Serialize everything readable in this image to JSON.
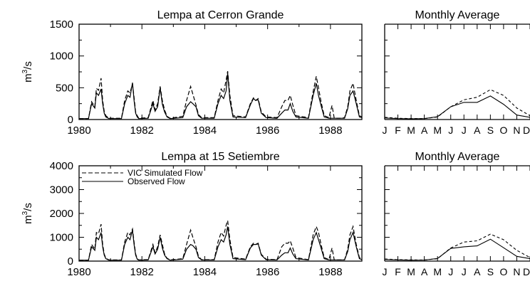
{
  "colors": {
    "background": "#ffffff",
    "ink": "#000000"
  },
  "series_styles": {
    "simulated": {
      "dash": "dashed"
    },
    "observed": {
      "dash": "solid"
    }
  },
  "y_unit_label": "m3/s",
  "chart_data": [
    {
      "id": "lempa-cerron-grande-timeseries",
      "type": "line",
      "title": "Lempa at Cerron Grande",
      "ylabel": "m3/s",
      "xlim": [
        1980,
        1989
      ],
      "ylim": [
        0,
        1500
      ],
      "xticks": [
        1980,
        1982,
        1984,
        1986,
        1988
      ],
      "yticks": [
        0,
        500,
        1000,
        1500
      ],
      "legend": null,
      "series": [
        {
          "name": "VIC Simulated Flow",
          "style": "dashed",
          "x": [
            1980,
            1980.3,
            1980.4,
            1980.5,
            1980.55,
            1980.62,
            1980.7,
            1980.75,
            1980.8,
            1980.85,
            1980.95,
            1981.35,
            1981.45,
            1981.55,
            1981.62,
            1981.7,
            1981.75,
            1981.8,
            1981.85,
            1981.9,
            1982.2,
            1982.35,
            1982.42,
            1982.5,
            1982.58,
            1982.65,
            1982.72,
            1982.8,
            1982.9,
            1983.3,
            1983.42,
            1983.55,
            1983.62,
            1983.72,
            1983.8,
            1983.9,
            1984.3,
            1984.42,
            1984.52,
            1984.6,
            1984.68,
            1984.73,
            1984.8,
            1984.9,
            1985.3,
            1985.45,
            1985.55,
            1985.62,
            1985.7,
            1985.8,
            1985.95,
            1986.3,
            1986.45,
            1986.55,
            1986.65,
            1986.72,
            1986.8,
            1986.9,
            1987.3,
            1987.45,
            1987.55,
            1987.62,
            1987.7,
            1987.8,
            1987.95,
            1988.05,
            1988.12,
            1988.2,
            1988.35,
            1988.45,
            1988.55,
            1988.62,
            1988.72,
            1988.82,
            1988.92,
            1989
          ],
          "y": [
            15,
            15,
            280,
            200,
            490,
            460,
            650,
            300,
            130,
            60,
            20,
            20,
            300,
            450,
            420,
            560,
            350,
            120,
            60,
            20,
            30,
            300,
            150,
            250,
            520,
            300,
            150,
            50,
            20,
            50,
            300,
            520,
            400,
            230,
            80,
            30,
            30,
            300,
            480,
            420,
            620,
            760,
            380,
            60,
            40,
            250,
            340,
            300,
            330,
            120,
            40,
            30,
            200,
            300,
            300,
            380,
            230,
            60,
            30,
            440,
            680,
            500,
            280,
            60,
            30,
            220,
            20,
            20,
            20,
            30,
            200,
            450,
            570,
            300,
            60,
            40
          ]
        },
        {
          "name": "Observed Flow",
          "style": "solid",
          "x": [
            1980,
            1980.3,
            1980.4,
            1980.5,
            1980.55,
            1980.62,
            1980.7,
            1980.75,
            1980.8,
            1980.85,
            1980.95,
            1981.35,
            1981.45,
            1981.55,
            1981.62,
            1981.7,
            1981.75,
            1981.8,
            1981.85,
            1981.9,
            1982.2,
            1982.35,
            1982.42,
            1982.5,
            1982.58,
            1982.65,
            1982.72,
            1982.8,
            1982.9,
            1983.3,
            1983.42,
            1983.55,
            1983.62,
            1983.72,
            1983.8,
            1983.9,
            1984.3,
            1984.42,
            1984.52,
            1984.6,
            1984.68,
            1984.73,
            1984.8,
            1984.9,
            1985.3,
            1985.45,
            1985.55,
            1985.62,
            1985.7,
            1985.8,
            1985.95,
            1986.3,
            1986.45,
            1986.55,
            1986.65,
            1986.72,
            1986.8,
            1986.9,
            1987.3,
            1987.45,
            1987.55,
            1987.62,
            1987.7,
            1987.8,
            1987.95,
            1988.05,
            1988.12,
            1988.2,
            1988.35,
            1988.45,
            1988.55,
            1988.62,
            1988.72,
            1988.82,
            1988.92,
            1989
          ],
          "y": [
            15,
            15,
            250,
            180,
            420,
            380,
            480,
            250,
            100,
            40,
            15,
            15,
            250,
            380,
            350,
            580,
            300,
            100,
            40,
            15,
            20,
            250,
            130,
            200,
            500,
            240,
            120,
            40,
            15,
            30,
            200,
            280,
            250,
            200,
            60,
            20,
            20,
            250,
            380,
            330,
            450,
            730,
            300,
            40,
            30,
            230,
            330,
            300,
            310,
            100,
            30,
            20,
            100,
            150,
            150,
            250,
            130,
            40,
            20,
            380,
            570,
            380,
            220,
            40,
            20,
            20,
            20,
            20,
            20,
            20,
            170,
            380,
            450,
            250,
            40,
            30
          ]
        }
      ]
    },
    {
      "id": "cerron-grande-monthly-average",
      "type": "line",
      "title": "Monthly Average",
      "categories": [
        "J",
        "F",
        "M",
        "A",
        "M",
        "J",
        "J",
        "A",
        "S",
        "O",
        "N",
        "D"
      ],
      "ylim": [
        0,
        1500
      ],
      "series": [
        {
          "name": "VIC Simulated Flow",
          "style": "dashed",
          "values": [
            35,
            20,
            15,
            15,
            40,
            200,
            310,
            350,
            470,
            380,
            180,
            60
          ]
        },
        {
          "name": "Observed Flow",
          "style": "solid",
          "values": [
            25,
            15,
            12,
            15,
            45,
            200,
            270,
            270,
            370,
            240,
            70,
            35
          ]
        }
      ]
    },
    {
      "id": "lempa-15-setiembre-timeseries",
      "type": "line",
      "title": "Lempa at 15 Setiembre",
      "ylabel": "m3/s",
      "xlim": [
        1980,
        1989
      ],
      "ylim": [
        0,
        4000
      ],
      "xticks": [
        1980,
        1982,
        1984,
        1986,
        1988
      ],
      "yticks": [
        0,
        1000,
        2000,
        3000,
        4000
      ],
      "legend": "top-left",
      "series": [
        {
          "name": "VIC Simulated Flow",
          "style": "dashed",
          "x": [
            1980,
            1980.3,
            1980.4,
            1980.5,
            1980.55,
            1980.62,
            1980.7,
            1980.75,
            1980.8,
            1980.85,
            1980.95,
            1981.35,
            1981.45,
            1981.55,
            1981.62,
            1981.7,
            1981.75,
            1981.8,
            1981.85,
            1981.9,
            1982.2,
            1982.35,
            1982.42,
            1982.5,
            1982.58,
            1982.65,
            1982.72,
            1982.8,
            1982.9,
            1983.3,
            1983.42,
            1983.55,
            1983.62,
            1983.72,
            1983.8,
            1983.9,
            1984.3,
            1984.42,
            1984.52,
            1984.6,
            1984.68,
            1984.73,
            1984.8,
            1984.9,
            1985.3,
            1985.45,
            1985.55,
            1985.62,
            1985.7,
            1985.8,
            1985.95,
            1986.3,
            1986.45,
            1986.55,
            1986.65,
            1986.72,
            1986.8,
            1986.9,
            1987.3,
            1987.45,
            1987.55,
            1987.62,
            1987.7,
            1987.8,
            1987.95,
            1988.05,
            1988.12,
            1988.2,
            1988.35,
            1988.45,
            1988.55,
            1988.62,
            1988.72,
            1988.82,
            1988.92,
            1989
          ],
          "y": [
            40,
            40,
            700,
            500,
            1200,
            1150,
            1550,
            700,
            300,
            120,
            50,
            50,
            800,
            1200,
            1100,
            1350,
            800,
            300,
            100,
            50,
            60,
            700,
            350,
            600,
            1100,
            700,
            300,
            120,
            50,
            100,
            700,
            1300,
            1000,
            600,
            200,
            60,
            60,
            800,
            1200,
            1050,
            1500,
            1700,
            900,
            150,
            80,
            600,
            750,
            700,
            750,
            280,
            80,
            60,
            600,
            750,
            750,
            850,
            550,
            150,
            60,
            1100,
            1450,
            1200,
            700,
            150,
            60,
            550,
            50,
            50,
            50,
            60,
            500,
            1100,
            1450,
            700,
            150,
            80
          ]
        },
        {
          "name": "Observed Flow",
          "style": "solid",
          "x": [
            1980,
            1980.3,
            1980.4,
            1980.5,
            1980.55,
            1980.62,
            1980.7,
            1980.75,
            1980.8,
            1980.85,
            1980.95,
            1981.35,
            1981.45,
            1981.55,
            1981.62,
            1981.7,
            1981.75,
            1981.8,
            1981.85,
            1981.9,
            1982.2,
            1982.35,
            1982.42,
            1982.5,
            1982.58,
            1982.65,
            1982.72,
            1982.8,
            1982.9,
            1983.3,
            1983.42,
            1983.55,
            1983.62,
            1983.72,
            1983.8,
            1983.9,
            1984.3,
            1984.42,
            1984.52,
            1984.6,
            1984.68,
            1984.73,
            1984.8,
            1984.9,
            1985.3,
            1985.45,
            1985.55,
            1985.62,
            1985.7,
            1985.8,
            1985.95,
            1986.3,
            1986.45,
            1986.55,
            1986.65,
            1986.72,
            1986.8,
            1986.9,
            1987.3,
            1987.45,
            1987.55,
            1987.62,
            1987.7,
            1987.8,
            1987.95,
            1988.05,
            1988.12,
            1988.2,
            1988.35,
            1988.45,
            1988.55,
            1988.62,
            1988.72,
            1988.82,
            1988.92,
            1989
          ],
          "y": [
            40,
            40,
            600,
            450,
            1000,
            900,
            1200,
            600,
            250,
            100,
            40,
            40,
            700,
            1000,
            900,
            1300,
            700,
            250,
            80,
            40,
            50,
            600,
            300,
            500,
            1000,
            550,
            250,
            100,
            40,
            80,
            500,
            700,
            650,
            500,
            150,
            50,
            50,
            600,
            900,
            800,
            1100,
            1450,
            700,
            100,
            60,
            550,
            700,
            700,
            720,
            250,
            60,
            50,
            250,
            350,
            350,
            550,
            300,
            100,
            50,
            900,
            1200,
            900,
            550,
            100,
            50,
            50,
            50,
            50,
            50,
            50,
            400,
            900,
            1200,
            600,
            100,
            60
          ]
        }
      ]
    },
    {
      "id": "15-setiembre-monthly-average",
      "type": "line",
      "title": "Monthly Average",
      "categories": [
        "J",
        "F",
        "M",
        "A",
        "M",
        "J",
        "J",
        "A",
        "S",
        "O",
        "N",
        "D"
      ],
      "ylim": [
        0,
        4000
      ],
      "series": [
        {
          "name": "VIC Simulated Flow",
          "style": "dashed",
          "values": [
            90,
            60,
            50,
            45,
            100,
            550,
            800,
            850,
            1130,
            900,
            450,
            150
          ]
        },
        {
          "name": "Observed Flow",
          "style": "solid",
          "values": [
            70,
            50,
            40,
            45,
            110,
            530,
            600,
            640,
            920,
            560,
            200,
            100
          ]
        }
      ]
    }
  ]
}
